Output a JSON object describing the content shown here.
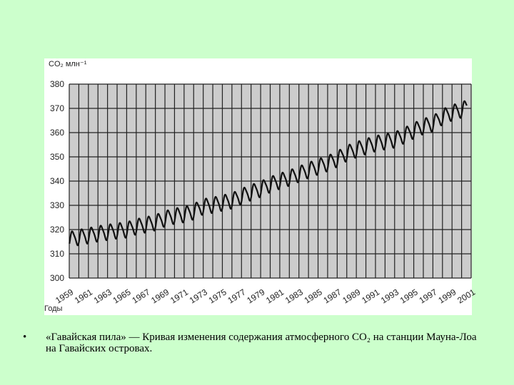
{
  "chart_data": {
    "type": "line",
    "unit_label": "CO₂ млн⁻¹",
    "xlabel": "Годы",
    "ylabel": "",
    "x_range": [
      1959,
      2001
    ],
    "ylim": [
      300,
      380
    ],
    "y_ticks": [
      "300",
      "310",
      "320",
      "330",
      "340",
      "350",
      "360",
      "370",
      "380"
    ],
    "x_ticks": [
      "1959",
      "1961",
      "1963",
      "1965",
      "1967",
      "1969",
      "1971",
      "1973",
      "1975",
      "1977",
      "1979",
      "1981",
      "1983",
      "1985",
      "1987",
      "1989",
      "1991",
      "1993",
      "1995",
      "1997",
      "1999",
      "2001"
    ],
    "grid": true,
    "colors": {
      "line": "#111111",
      "grid": "#222222",
      "plot_bg": "#cccccc"
    },
    "series": [
      {
        "annual_mean": [
          [
            1959,
            316.0
          ],
          [
            1960,
            316.9
          ],
          [
            1961,
            317.6
          ],
          [
            1962,
            318.4
          ],
          [
            1963,
            319.0
          ],
          [
            1964,
            319.6
          ],
          [
            1965,
            320.0
          ],
          [
            1966,
            321.3
          ],
          [
            1967,
            322.1
          ],
          [
            1968,
            323.0
          ],
          [
            1969,
            324.6
          ],
          [
            1970,
            325.7
          ],
          [
            1971,
            326.3
          ],
          [
            1972,
            327.5
          ],
          [
            1973,
            329.6
          ],
          [
            1974,
            330.2
          ],
          [
            1975,
            331.1
          ],
          [
            1976,
            332.0
          ],
          [
            1977,
            333.8
          ],
          [
            1978,
            335.4
          ],
          [
            1979,
            336.8
          ],
          [
            1980,
            338.7
          ],
          [
            1981,
            340.1
          ],
          [
            1982,
            341.4
          ],
          [
            1983,
            343.0
          ],
          [
            1984,
            344.6
          ],
          [
            1985,
            346.0
          ],
          [
            1986,
            347.4
          ],
          [
            1987,
            349.2
          ],
          [
            1988,
            351.6
          ],
          [
            1989,
            353.1
          ],
          [
            1990,
            354.4
          ],
          [
            1991,
            355.6
          ],
          [
            1992,
            356.4
          ],
          [
            1993,
            357.1
          ],
          [
            1994,
            358.9
          ],
          [
            1995,
            360.9
          ],
          [
            1996,
            362.7
          ],
          [
            1997,
            363.8
          ],
          [
            1998,
            366.6
          ],
          [
            1999,
            368.3
          ],
          [
            2000,
            369.5
          ],
          [
            2001,
            371.0
          ]
        ],
        "seasonal_amplitude": 3.0
      }
    ]
  },
  "caption": {
    "bullet": "•",
    "text": "«Гавайская пила» — Кривая изменения содержания атмосферного CO₂ на станции Мауна-Лоа на Гавайских островах."
  }
}
